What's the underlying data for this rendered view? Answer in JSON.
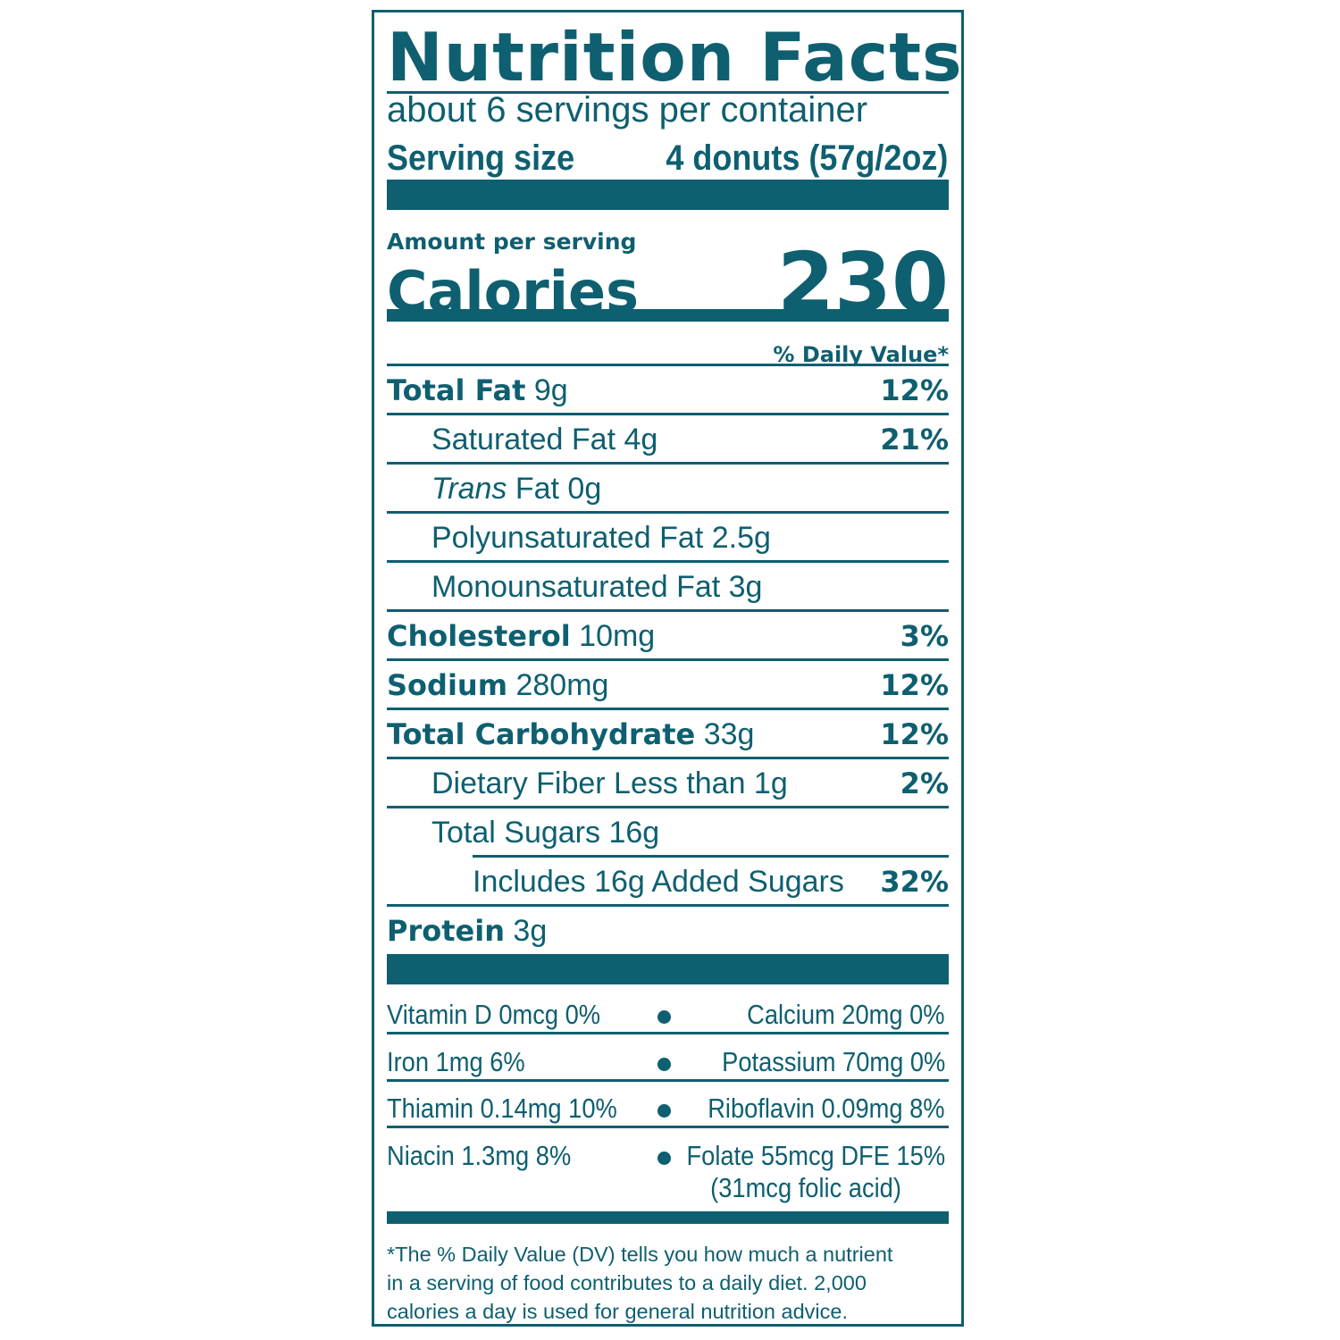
{
  "label": {
    "title": "Nutrition Facts",
    "servings_per_container": "about 6 servings per container",
    "serving_size_label": "Serving size",
    "serving_size_value": "4 donuts (57g/2oz)",
    "amount_per_serving": "Amount per serving",
    "calories_label": "Calories",
    "calories_value": "230",
    "daily_value_header": "% Daily Value*"
  },
  "nutrients": {
    "total_fat": {
      "name": "Total Fat",
      "amount": "9g",
      "dv": "12%"
    },
    "saturated_fat": {
      "name": "Saturated Fat 4g",
      "dv": "21%"
    },
    "trans_fat": {
      "name_italic": "Trans",
      "name": "Fat 0g"
    },
    "polyunsaturated_fat": {
      "name": "Polyunsaturated Fat 2.5g"
    },
    "monounsaturated_fat": {
      "name": "Monounsaturated Fat 3g"
    },
    "cholesterol": {
      "name": "Cholesterol",
      "amount": "10mg",
      "dv": "3%"
    },
    "sodium": {
      "name": "Sodium",
      "amount": "280mg",
      "dv": "12%"
    },
    "total_carbohydrate": {
      "name": "Total Carbohydrate",
      "amount": "33g",
      "dv": "12%"
    },
    "dietary_fiber": {
      "name": "Dietary Fiber Less than 1g",
      "dv": "2%"
    },
    "total_sugars": {
      "name": "Total Sugars 16g"
    },
    "added_sugars": {
      "name": "Includes 16g Added Sugars",
      "dv": "32%"
    },
    "protein": {
      "name": "Protein",
      "amount": "3g"
    }
  },
  "vitamins": {
    "vitamin_d": "Vitamin D 0mcg 0%",
    "calcium": "Calcium 20mg 0%",
    "iron": "Iron 1mg 6%",
    "potassium": "Potassium 70mg 0%",
    "thiamin": "Thiamin 0.14mg 10%",
    "riboflavin": "Riboflavin 0.09mg 8%",
    "niacin": "Niacin 1.3mg 8%",
    "folate": "Folate 55mcg DFE 15%",
    "folic_acid": "(31mcg folic acid)"
  },
  "footnote": {
    "line1": "*The % Daily Value (DV) tells you how much a nutrient",
    "line2": "in a serving of food contributes to a daily diet. 2,000",
    "line3": "calories a day is used for general nutrition advice."
  },
  "colors": {
    "ink": "#0e5f70",
    "background": "#ffffff"
  }
}
